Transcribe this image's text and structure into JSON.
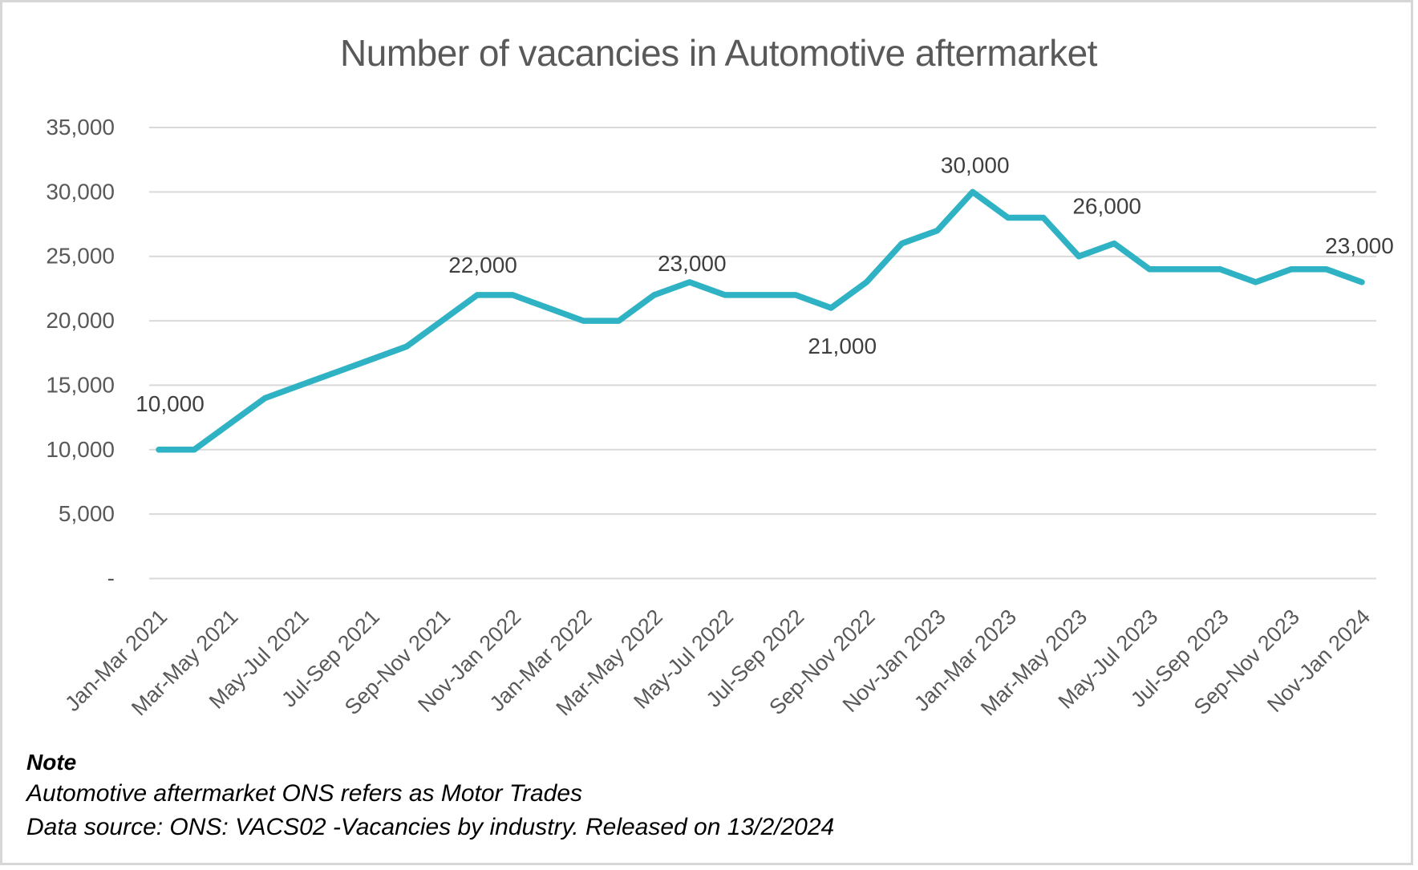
{
  "chart": {
    "title": "Number of vacancies in Automotive aftermarket"
  },
  "chart_data": {
    "type": "line",
    "title": "Number of vacancies in Automotive aftermarket",
    "series_name": "Number of vacancies",
    "values": [
      10000,
      10000,
      12000,
      14000,
      15000,
      16000,
      17000,
      18000,
      20000,
      22000,
      22000,
      21000,
      20000,
      20000,
      22000,
      23000,
      22000,
      22000,
      22000,
      21000,
      23000,
      26000,
      27000,
      30000,
      28000,
      28000,
      25000,
      26000,
      24000,
      24000,
      24000,
      23000,
      24000,
      24000,
      23000
    ],
    "x_tick_labels": [
      "Jan-Mar 2021",
      "Mar-May 2021",
      "May-Jul 2021",
      "Jul-Sep 2021",
      "Sep-Nov 2021",
      "Nov-Jan 2022",
      "Jan-Mar 2022",
      "Mar-May 2022",
      "May-Jul 2022",
      "Jul-Sep 2022",
      "Sep-Nov 2022",
      "Nov-Jan 2023",
      "Jan-Mar 2023",
      "Mar-May 2023",
      "May-Jul 2023",
      "Jul-Sep 2023",
      "Sep-Nov 2023",
      "Nov-Jan 2024"
    ],
    "ticks_every_n_points": 2,
    "ylim": [
      0,
      35000
    ],
    "y_tick_interval": 5000,
    "y_tick_labels": [
      "35,000",
      "30,000",
      "25,000",
      "20,000",
      "15,000",
      "10,000",
      "5,000",
      "-"
    ],
    "grid": true,
    "legend": false,
    "point_labels": [
      {
        "index": 0,
        "text": "10,000",
        "placement": "above"
      },
      {
        "index": 9,
        "text": "22,000",
        "placement": "above"
      },
      {
        "index": 15,
        "text": "23,000",
        "placement": "above"
      },
      {
        "index": 19,
        "text": "21,000",
        "placement": "below"
      },
      {
        "index": 23,
        "text": "30,000",
        "placement": "above"
      },
      {
        "index": 27,
        "text": "26,000",
        "placement": "above"
      },
      {
        "index": 34,
        "text": "23,000",
        "placement": "above"
      }
    ]
  },
  "note": {
    "heading": "Note",
    "line1": "Automotive aftermarket ONS refers as Motor Trades",
    "line2": "Data source: ONS: VACS02 -Vacancies by industry. Released on 13/2/2024"
  },
  "colors": {
    "line": "#2eb2c4",
    "gridline": "#d9d9d9",
    "axis_text": "#595959",
    "data_label_text": "#3f3f3f",
    "title_text": "#595959",
    "figure_border": "#d7d7d7",
    "note_text": "#000000"
  }
}
